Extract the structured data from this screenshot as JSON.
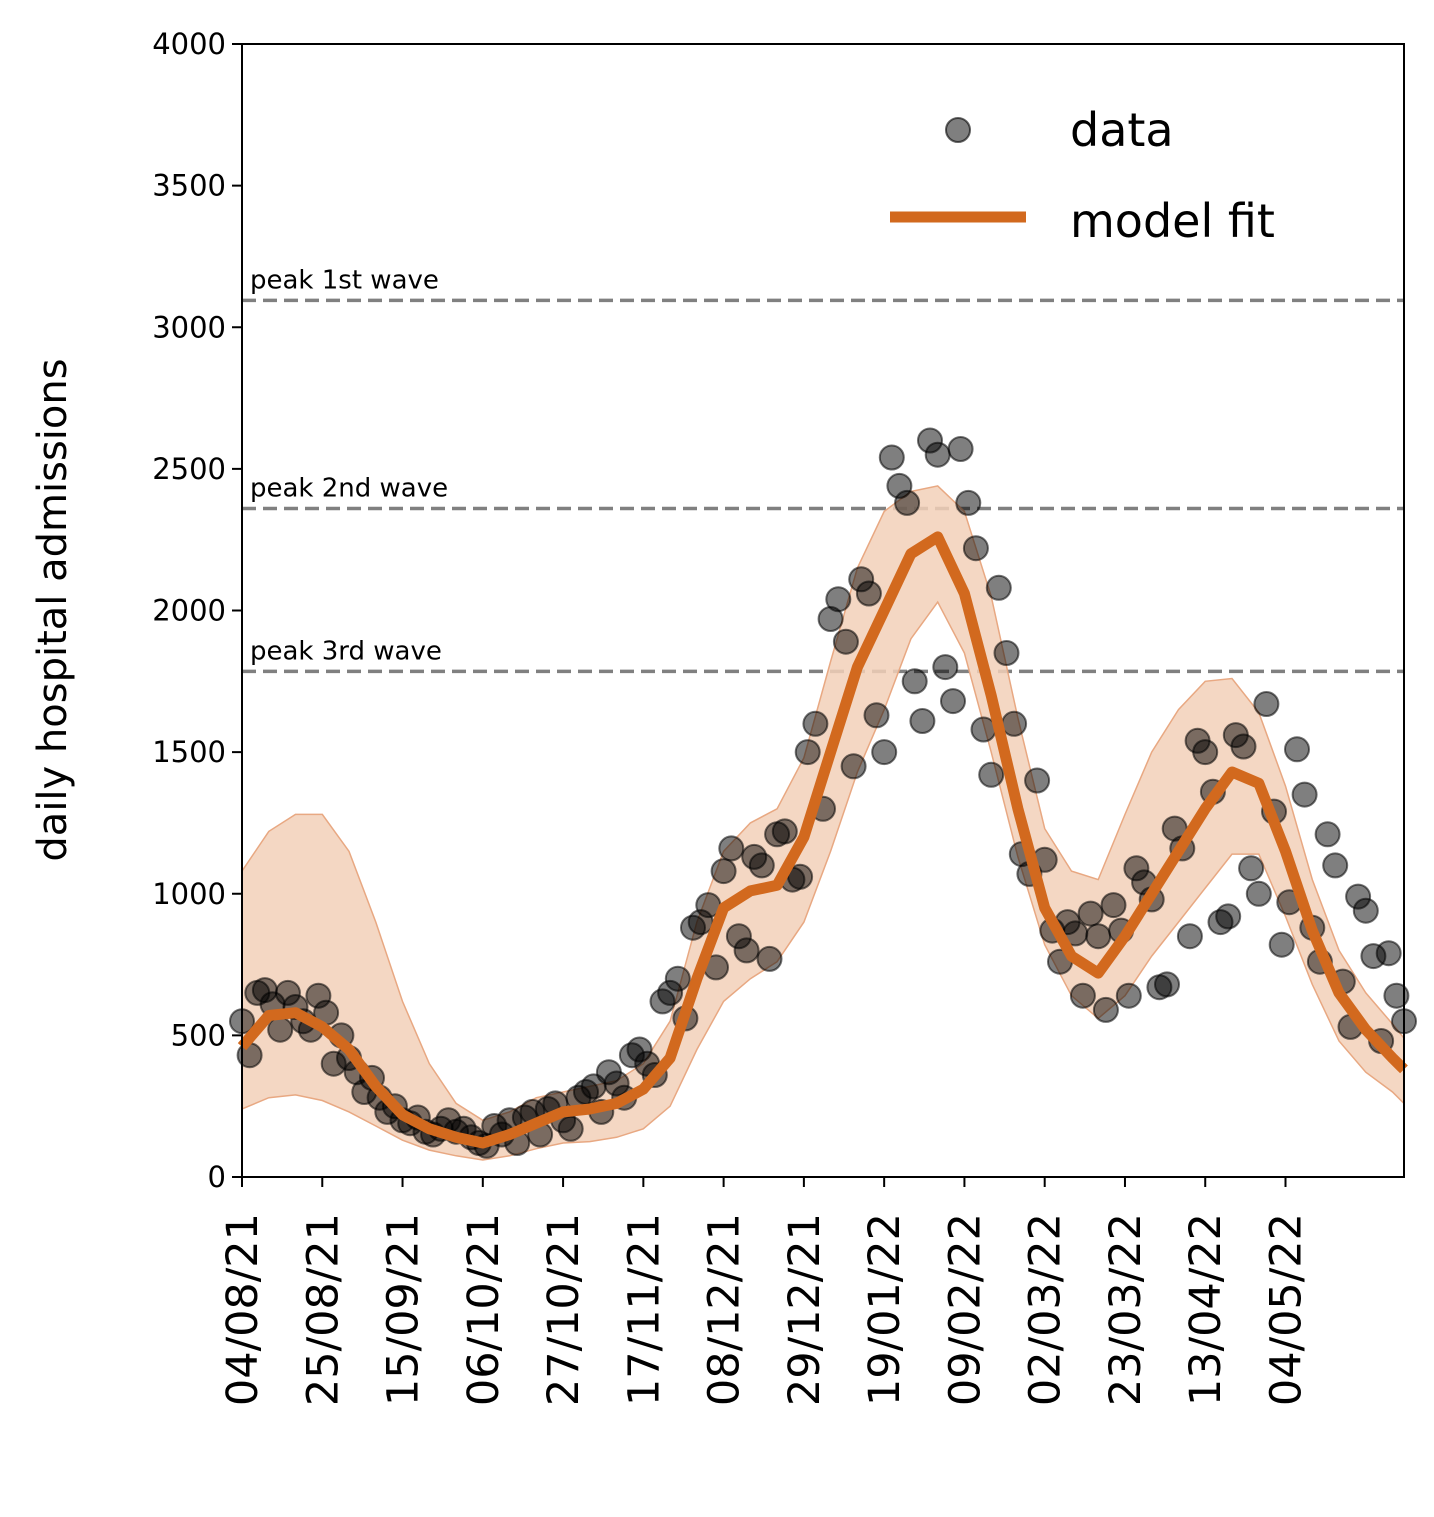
{
  "chart_data": {
    "type": "scatter",
    "title": "",
    "xlabel": "",
    "ylabel": "daily hospital admissions",
    "x_start": "04/08/21",
    "x_end": "04/06/22",
    "xtick_dates": [
      "04/08/21",
      "25/08/21",
      "15/09/21",
      "06/10/21",
      "27/10/21",
      "17/11/21",
      "08/12/21",
      "29/12/21",
      "19/01/22",
      "09/02/22",
      "02/03/22",
      "23/03/22",
      "13/04/22",
      "04/05/22"
    ],
    "xtick_labels": [
      "04/08/21",
      "25/08/21",
      "15/09/21",
      "06/10/21",
      "27/10/21",
      "17/11/21",
      "08/12/21",
      "29/12/21",
      "19/01/22",
      "09/02/22",
      "02/03/22",
      "23/03/22",
      "13/04/22",
      "04/05/22"
    ],
    "ylim": [
      0,
      4000
    ],
    "yticks": [
      0,
      500,
      1000,
      1500,
      2000,
      2500,
      3000,
      3500,
      4000
    ],
    "ytick_labels": [
      "0",
      "500",
      "1000",
      "1500",
      "2000",
      "2500",
      "3000",
      "3500",
      "4000"
    ],
    "grid": false,
    "legend_position": "top-right",
    "reference_lines": [
      {
        "label": "peak 1st wave",
        "value": 3095
      },
      {
        "label": "peak 2nd wave",
        "value": 2360
      },
      {
        "label": "peak 3rd wave",
        "value": 1785
      }
    ],
    "series": [
      {
        "name": "data",
        "kind": "scatter",
        "points": [
          [
            "04/08/21",
            550
          ],
          [
            "06/08/21",
            430
          ],
          [
            "08/08/21",
            650
          ],
          [
            "10/08/21",
            660
          ],
          [
            "12/08/21",
            610
          ],
          [
            "14/08/21",
            520
          ],
          [
            "16/08/21",
            650
          ],
          [
            "18/08/21",
            600
          ],
          [
            "20/08/21",
            550
          ],
          [
            "22/08/21",
            520
          ],
          [
            "24/08/21",
            640
          ],
          [
            "26/08/21",
            580
          ],
          [
            "28/08/21",
            400
          ],
          [
            "30/08/21",
            500
          ],
          [
            "01/09/21",
            420
          ],
          [
            "03/09/21",
            370
          ],
          [
            "05/09/21",
            300
          ],
          [
            "07/09/21",
            350
          ],
          [
            "09/09/21",
            280
          ],
          [
            "11/09/21",
            230
          ],
          [
            "13/09/21",
            250
          ],
          [
            "15/09/21",
            200
          ],
          [
            "17/09/21",
            190
          ],
          [
            "19/09/21",
            210
          ],
          [
            "21/09/21",
            160
          ],
          [
            "23/09/21",
            150
          ],
          [
            "25/09/21",
            170
          ],
          [
            "27/09/21",
            200
          ],
          [
            "29/09/21",
            160
          ],
          [
            "01/10/21",
            170
          ],
          [
            "03/10/21",
            140
          ],
          [
            "05/10/21",
            120
          ],
          [
            "07/10/21",
            110
          ],
          [
            "09/10/21",
            180
          ],
          [
            "11/10/21",
            150
          ],
          [
            "13/10/21",
            200
          ],
          [
            "15/10/21",
            120
          ],
          [
            "17/10/21",
            210
          ],
          [
            "19/10/21",
            230
          ],
          [
            "21/10/21",
            150
          ],
          [
            "23/10/21",
            240
          ],
          [
            "25/10/21",
            260
          ],
          [
            "27/10/21",
            200
          ],
          [
            "29/10/21",
            170
          ],
          [
            "31/10/21",
            280
          ],
          [
            "02/11/21",
            300
          ],
          [
            "04/11/21",
            320
          ],
          [
            "06/11/21",
            230
          ],
          [
            "08/11/21",
            370
          ],
          [
            "10/11/21",
            330
          ],
          [
            "12/11/21",
            280
          ],
          [
            "14/11/21",
            430
          ],
          [
            "16/11/21",
            450
          ],
          [
            "18/11/21",
            400
          ],
          [
            "20/11/21",
            360
          ],
          [
            "22/11/21",
            620
          ],
          [
            "24/11/21",
            650
          ],
          [
            "26/11/21",
            700
          ],
          [
            "28/11/21",
            560
          ],
          [
            "30/11/21",
            880
          ],
          [
            "02/12/21",
            900
          ],
          [
            "04/12/21",
            960
          ],
          [
            "06/12/21",
            740
          ],
          [
            "08/12/21",
            1080
          ],
          [
            "10/12/21",
            1160
          ],
          [
            "12/12/21",
            850
          ],
          [
            "14/12/21",
            800
          ],
          [
            "16/12/21",
            1130
          ],
          [
            "18/12/21",
            1100
          ],
          [
            "20/12/21",
            770
          ],
          [
            "22/12/21",
            1210
          ],
          [
            "24/12/21",
            1220
          ],
          [
            "26/12/21",
            1050
          ],
          [
            "28/12/21",
            1060
          ],
          [
            "30/12/21",
            1500
          ],
          [
            "01/01/22",
            1600
          ],
          [
            "03/01/22",
            1300
          ],
          [
            "05/01/22",
            1970
          ],
          [
            "07/01/22",
            2040
          ],
          [
            "09/01/22",
            1890
          ],
          [
            "11/01/22",
            1450
          ],
          [
            "13/01/22",
            2110
          ],
          [
            "15/01/22",
            2060
          ],
          [
            "17/01/22",
            1630
          ],
          [
            "19/01/22",
            1500
          ],
          [
            "21/01/22",
            2540
          ],
          [
            "23/01/22",
            2440
          ],
          [
            "25/01/22",
            2380
          ],
          [
            "27/01/22",
            1750
          ],
          [
            "29/01/22",
            1610
          ],
          [
            "31/01/22",
            2600
          ],
          [
            "02/02/22",
            2550
          ],
          [
            "04/02/22",
            1800
          ],
          [
            "06/02/22",
            1680
          ],
          [
            "08/02/22",
            2570
          ],
          [
            "10/02/22",
            2380
          ],
          [
            "12/02/22",
            2220
          ],
          [
            "14/02/22",
            1580
          ],
          [
            "16/02/22",
            1420
          ],
          [
            "18/02/22",
            2080
          ],
          [
            "20/02/22",
            1850
          ],
          [
            "22/02/22",
            1600
          ],
          [
            "24/02/22",
            1140
          ],
          [
            "26/02/22",
            1070
          ],
          [
            "28/02/22",
            1400
          ],
          [
            "02/03/22",
            1120
          ],
          [
            "04/03/22",
            870
          ],
          [
            "06/03/22",
            760
          ],
          [
            "08/03/22",
            900
          ],
          [
            "10/03/22",
            860
          ],
          [
            "12/03/22",
            640
          ],
          [
            "14/03/22",
            930
          ],
          [
            "16/03/22",
            850
          ],
          [
            "18/03/22",
            590
          ],
          [
            "20/03/22",
            960
          ],
          [
            "22/03/22",
            870
          ],
          [
            "24/03/22",
            640
          ],
          [
            "26/03/22",
            1090
          ],
          [
            "28/03/22",
            1040
          ],
          [
            "30/03/22",
            980
          ],
          [
            "01/04/22",
            670
          ],
          [
            "03/04/22",
            680
          ],
          [
            "05/04/22",
            1230
          ],
          [
            "07/04/22",
            1160
          ],
          [
            "09/04/22",
            850
          ],
          [
            "11/04/22",
            1540
          ],
          [
            "13/04/22",
            1500
          ],
          [
            "15/04/22",
            1360
          ],
          [
            "17/04/22",
            900
          ],
          [
            "19/04/22",
            920
          ],
          [
            "21/04/22",
            1560
          ],
          [
            "23/04/22",
            1520
          ],
          [
            "25/04/22",
            1090
          ],
          [
            "27/04/22",
            1000
          ],
          [
            "29/04/22",
            1670
          ],
          [
            "01/05/22",
            1290
          ],
          [
            "03/05/22",
            820
          ],
          [
            "05/05/22",
            970
          ],
          [
            "07/05/22",
            1510
          ],
          [
            "09/05/22",
            1350
          ],
          [
            "11/05/22",
            880
          ],
          [
            "13/05/22",
            760
          ],
          [
            "15/05/22",
            1210
          ],
          [
            "17/05/22",
            1100
          ],
          [
            "19/05/22",
            690
          ],
          [
            "21/05/22",
            530
          ],
          [
            "23/05/22",
            990
          ],
          [
            "25/05/22",
            940
          ],
          [
            "27/05/22",
            780
          ],
          [
            "29/05/22",
            480
          ],
          [
            "31/05/22",
            790
          ],
          [
            "02/06/22",
            640
          ],
          [
            "04/06/22",
            550
          ]
        ]
      },
      {
        "name": "model fit",
        "kind": "line",
        "color": "#d2691e",
        "points": [
          [
            "04/08/21",
            460
          ],
          [
            "11/08/21",
            570
          ],
          [
            "18/08/21",
            580
          ],
          [
            "25/08/21",
            530
          ],
          [
            "01/09/21",
            450
          ],
          [
            "08/09/21",
            320
          ],
          [
            "15/09/21",
            220
          ],
          [
            "22/09/21",
            170
          ],
          [
            "29/09/21",
            140
          ],
          [
            "06/10/21",
            120
          ],
          [
            "13/10/21",
            150
          ],
          [
            "20/10/21",
            190
          ],
          [
            "27/10/21",
            230
          ],
          [
            "03/11/21",
            240
          ],
          [
            "10/11/21",
            260
          ],
          [
            "17/11/21",
            310
          ],
          [
            "24/11/21",
            420
          ],
          [
            "01/12/21",
            700
          ],
          [
            "08/12/21",
            950
          ],
          [
            "15/12/21",
            1010
          ],
          [
            "22/12/21",
            1030
          ],
          [
            "29/12/21",
            1200
          ],
          [
            "05/01/22",
            1500
          ],
          [
            "12/01/22",
            1800
          ],
          [
            "19/01/22",
            2000
          ],
          [
            "26/01/22",
            2200
          ],
          [
            "02/02/22",
            2260
          ],
          [
            "09/02/22",
            2060
          ],
          [
            "16/02/22",
            1700
          ],
          [
            "23/02/22",
            1300
          ],
          [
            "02/03/22",
            950
          ],
          [
            "09/03/22",
            780
          ],
          [
            "16/03/22",
            720
          ],
          [
            "23/03/22",
            850
          ],
          [
            "30/03/22",
            1000
          ],
          [
            "06/04/22",
            1150
          ],
          [
            "13/04/22",
            1300
          ],
          [
            "20/04/22",
            1430
          ],
          [
            "27/04/22",
            1390
          ],
          [
            "04/05/22",
            1150
          ],
          [
            "11/05/22",
            870
          ],
          [
            "18/05/22",
            650
          ],
          [
            "25/05/22",
            520
          ],
          [
            "01/06/22",
            420
          ],
          [
            "04/06/22",
            380
          ]
        ]
      },
      {
        "name": "",
        "kind": "band",
        "color": "#f2d0b8",
        "points": [
          [
            "04/08/21",
            240,
            1080
          ],
          [
            "11/08/21",
            280,
            1220
          ],
          [
            "18/08/21",
            290,
            1280
          ],
          [
            "25/08/21",
            270,
            1280
          ],
          [
            "01/09/21",
            230,
            1150
          ],
          [
            "08/09/21",
            180,
            900
          ],
          [
            "15/09/21",
            130,
            620
          ],
          [
            "22/09/21",
            95,
            400
          ],
          [
            "29/09/21",
            75,
            260
          ],
          [
            "06/10/21",
            60,
            200
          ],
          [
            "13/10/21",
            75,
            230
          ],
          [
            "20/10/21",
            100,
            280
          ],
          [
            "27/10/21",
            120,
            300
          ],
          [
            "03/11/21",
            125,
            320
          ],
          [
            "10/11/21",
            140,
            340
          ],
          [
            "17/11/21",
            170,
            400
          ],
          [
            "24/11/21",
            250,
            550
          ],
          [
            "01/12/21",
            450,
            900
          ],
          [
            "08/12/21",
            620,
            1150
          ],
          [
            "15/12/21",
            700,
            1250
          ],
          [
            "22/12/21",
            760,
            1300
          ],
          [
            "29/12/21",
            900,
            1480
          ],
          [
            "05/01/22",
            1150,
            1820
          ],
          [
            "12/01/22",
            1430,
            2150
          ],
          [
            "19/01/22",
            1650,
            2350
          ],
          [
            "26/01/22",
            1900,
            2420
          ],
          [
            "02/02/22",
            2030,
            2440
          ],
          [
            "09/02/22",
            1850,
            2350
          ],
          [
            "16/02/22",
            1500,
            2050
          ],
          [
            "23/02/22",
            1130,
            1620
          ],
          [
            "02/03/22",
            820,
            1230
          ],
          [
            "09/03/22",
            640,
            1080
          ],
          [
            "16/03/22",
            560,
            1050
          ],
          [
            "23/03/22",
            640,
            1280
          ],
          [
            "30/03/22",
            780,
            1500
          ],
          [
            "06/04/22",
            900,
            1650
          ],
          [
            "13/04/22",
            1020,
            1750
          ],
          [
            "20/04/22",
            1140,
            1760
          ],
          [
            "27/04/22",
            1140,
            1640
          ],
          [
            "04/05/22",
            920,
            1380
          ],
          [
            "11/05/22",
            680,
            1050
          ],
          [
            "18/05/22",
            480,
            800
          ],
          [
            "25/05/22",
            370,
            650
          ],
          [
            "01/06/22",
            300,
            540
          ],
          [
            "04/06/22",
            260,
            490
          ]
        ]
      }
    ]
  }
}
